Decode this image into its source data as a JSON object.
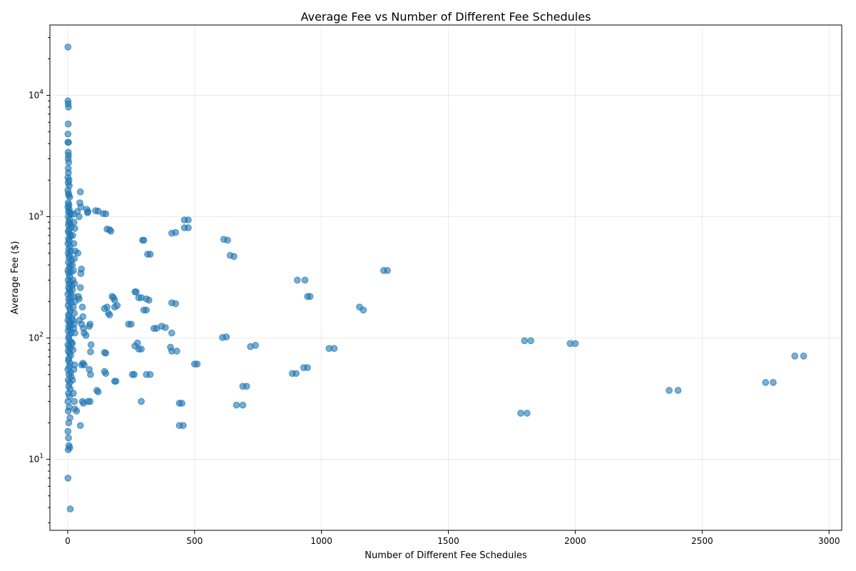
{
  "chart_data": {
    "type": "scatter",
    "title": "Average Fee vs Number of Different Fee Schedules",
    "xlabel": "Number of Different Fee Schedules",
    "ylabel": "Average Fee ($)",
    "xlim": [
      -70,
      3050
    ],
    "ylim": [
      2.6,
      38000
    ],
    "yscale": "log",
    "grid": true,
    "color": "#1f77b4",
    "x_ticks": [
      0,
      500,
      1000,
      1500,
      2000,
      2500,
      3000
    ],
    "x_tick_labels": [
      "0",
      "500",
      "1000",
      "1500",
      "2000",
      "2500",
      "3000"
    ],
    "y_ticks": [
      10,
      100,
      1000,
      10000
    ],
    "y_tick_labels": [
      [
        "10",
        "1"
      ],
      [
        "10",
        "2"
      ],
      [
        "10",
        "3"
      ],
      [
        "10",
        "4"
      ]
    ],
    "points": [
      [
        1,
        25000
      ],
      [
        1,
        9000
      ],
      [
        2,
        8500
      ],
      [
        3,
        8000
      ],
      [
        2,
        5800
      ],
      [
        1,
        4800
      ],
      [
        1,
        4100
      ],
      [
        3,
        4100
      ],
      [
        2,
        3400
      ],
      [
        3,
        3200
      ],
      [
        2,
        3000
      ],
      [
        4,
        2800
      ],
      [
        2,
        2500
      ],
      [
        3,
        2300
      ],
      [
        1,
        2100
      ],
      [
        5,
        2000
      ],
      [
        2,
        1900
      ],
      [
        6,
        1800
      ],
      [
        1,
        1650
      ],
      [
        3,
        1550
      ],
      [
        4,
        1500
      ],
      [
        8,
        1450
      ],
      [
        2,
        1300
      ],
      [
        5,
        1250
      ],
      [
        1,
        1200
      ],
      [
        6,
        1150
      ],
      [
        3,
        1100
      ],
      [
        9,
        1080
      ],
      [
        12,
        1050
      ],
      [
        2,
        1000
      ],
      [
        7,
        950
      ],
      [
        4,
        900
      ],
      [
        10,
        880
      ],
      [
        3,
        850
      ],
      [
        14,
        820
      ],
      [
        5,
        780
      ],
      [
        2,
        750
      ],
      [
        8,
        720
      ],
      [
        11,
        690
      ],
      [
        3,
        660
      ],
      [
        6,
        630
      ],
      [
        1,
        600
      ],
      [
        9,
        570
      ],
      [
        4,
        540
      ],
      [
        12,
        520
      ],
      [
        2,
        500
      ],
      [
        7,
        480
      ],
      [
        5,
        460
      ],
      [
        15,
        440
      ],
      [
        3,
        420
      ],
      [
        10,
        400
      ],
      [
        6,
        380
      ],
      [
        1,
        360
      ],
      [
        13,
        350
      ],
      [
        4,
        340
      ],
      [
        8,
        320
      ],
      [
        2,
        300
      ],
      [
        11,
        290
      ],
      [
        5,
        280
      ],
      [
        16,
        270
      ],
      [
        3,
        260
      ],
      [
        7,
        250
      ],
      [
        9,
        240
      ],
      [
        1,
        230
      ],
      [
        12,
        220
      ],
      [
        4,
        210
      ],
      [
        6,
        200
      ],
      [
        14,
        195
      ],
      [
        2,
        185
      ],
      [
        8,
        175
      ],
      [
        10,
        165
      ],
      [
        3,
        155
      ],
      [
        5,
        150
      ],
      [
        17,
        145
      ],
      [
        1,
        140
      ],
      [
        7,
        135
      ],
      [
        11,
        130
      ],
      [
        4,
        125
      ],
      [
        9,
        120
      ],
      [
        2,
        115
      ],
      [
        13,
        110
      ],
      [
        6,
        105
      ],
      [
        3,
        100
      ],
      [
        8,
        95
      ],
      [
        15,
        92
      ],
      [
        1,
        88
      ],
      [
        5,
        85
      ],
      [
        10,
        82
      ],
      [
        2,
        78
      ],
      [
        7,
        75
      ],
      [
        12,
        72
      ],
      [
        4,
        68
      ],
      [
        3,
        65
      ],
      [
        9,
        62
      ],
      [
        6,
        58
      ],
      [
        1,
        55
      ],
      [
        11,
        52
      ],
      [
        5,
        50
      ],
      [
        14,
        48
      ],
      [
        2,
        45
      ],
      [
        8,
        43
      ],
      [
        4,
        40
      ],
      [
        10,
        38
      ],
      [
        3,
        35
      ],
      [
        7,
        33
      ],
      [
        1,
        30
      ],
      [
        6,
        27
      ],
      [
        2,
        25
      ],
      [
        9,
        22
      ],
      [
        4,
        20
      ],
      [
        1,
        17
      ],
      [
        3,
        15
      ],
      [
        5,
        13
      ],
      [
        2,
        12
      ],
      [
        8,
        12.5
      ],
      [
        1,
        7
      ],
      [
        10,
        3.9
      ],
      [
        22,
        1050
      ],
      [
        25,
        900
      ],
      [
        28,
        800
      ],
      [
        20,
        700
      ],
      [
        24,
        600
      ],
      [
        30,
        520
      ],
      [
        26,
        450
      ],
      [
        18,
        400
      ],
      [
        23,
        360
      ],
      [
        21,
        300
      ],
      [
        27,
        280
      ],
      [
        19,
        250
      ],
      [
        24,
        220
      ],
      [
        29,
        200
      ],
      [
        22,
        180
      ],
      [
        26,
        160
      ],
      [
        20,
        140
      ],
      [
        25,
        130
      ],
      [
        23,
        120
      ],
      [
        28,
        110
      ],
      [
        18,
        90
      ],
      [
        21,
        80
      ],
      [
        27,
        60
      ],
      [
        24,
        55
      ],
      [
        19,
        45
      ],
      [
        22,
        35
      ],
      [
        26,
        30
      ],
      [
        28,
        26
      ],
      [
        35,
        25
      ],
      [
        40,
        500
      ],
      [
        38,
        1100
      ],
      [
        45,
        1000
      ],
      [
        50,
        1600
      ],
      [
        48,
        1300
      ],
      [
        52,
        1200
      ],
      [
        42,
        220
      ],
      [
        45,
        210
      ],
      [
        50,
        260
      ],
      [
        54,
        370
      ],
      [
        52,
        340
      ],
      [
        46,
        140
      ],
      [
        55,
        130
      ],
      [
        60,
        150
      ],
      [
        58,
        180
      ],
      [
        62,
        120
      ],
      [
        65,
        110
      ],
      [
        55,
        60
      ],
      [
        60,
        62
      ],
      [
        65,
        60
      ],
      [
        58,
        30
      ],
      [
        62,
        29
      ],
      [
        50,
        19
      ],
      [
        75,
        1150
      ],
      [
        78,
        1080
      ],
      [
        80,
        1100
      ],
      [
        72,
        105
      ],
      [
        85,
        125
      ],
      [
        88,
        130
      ],
      [
        90,
        77
      ],
      [
        92,
        88
      ],
      [
        85,
        55
      ],
      [
        90,
        50
      ],
      [
        80,
        30
      ],
      [
        88,
        30
      ],
      [
        110,
        1120
      ],
      [
        120,
        1110
      ],
      [
        115,
        37
      ],
      [
        120,
        36
      ],
      [
        140,
        1060
      ],
      [
        150,
        1055
      ],
      [
        155,
        790
      ],
      [
        165,
        780
      ],
      [
        170,
        760
      ],
      [
        145,
        175
      ],
      [
        155,
        180
      ],
      [
        160,
        160
      ],
      [
        165,
        155
      ],
      [
        145,
        76
      ],
      [
        150,
        75
      ],
      [
        145,
        53
      ],
      [
        150,
        51
      ],
      [
        175,
        220
      ],
      [
        180,
        215
      ],
      [
        185,
        205
      ],
      [
        185,
        180
      ],
      [
        195,
        185
      ],
      [
        185,
        44
      ],
      [
        190,
        44
      ],
      [
        240,
        130
      ],
      [
        250,
        130
      ],
      [
        255,
        50
      ],
      [
        262,
        50
      ],
      [
        265,
        240
      ],
      [
        270,
        240
      ],
      [
        265,
        86
      ],
      [
        275,
        91
      ],
      [
        280,
        81
      ],
      [
        290,
        81
      ],
      [
        280,
        215
      ],
      [
        290,
        215
      ],
      [
        295,
        640
      ],
      [
        300,
        640
      ],
      [
        290,
        30
      ],
      [
        300,
        170
      ],
      [
        310,
        210
      ],
      [
        320,
        205
      ],
      [
        310,
        170
      ],
      [
        315,
        490
      ],
      [
        325,
        490
      ],
      [
        310,
        50
      ],
      [
        325,
        50
      ],
      [
        340,
        120
      ],
      [
        350,
        120
      ],
      [
        370,
        125
      ],
      [
        385,
        122
      ],
      [
        405,
        84
      ],
      [
        410,
        78
      ],
      [
        410,
        110
      ],
      [
        410,
        195
      ],
      [
        425,
        192
      ],
      [
        410,
        730
      ],
      [
        425,
        740
      ],
      [
        430,
        78
      ],
      [
        440,
        19
      ],
      [
        455,
        19
      ],
      [
        440,
        29
      ],
      [
        450,
        29
      ],
      [
        460,
        940
      ],
      [
        475,
        940
      ],
      [
        460,
        810
      ],
      [
        475,
        810
      ],
      [
        500,
        61
      ],
      [
        510,
        61
      ],
      [
        610,
        101
      ],
      [
        625,
        102
      ],
      [
        615,
        650
      ],
      [
        630,
        640
      ],
      [
        640,
        480
      ],
      [
        655,
        470
      ],
      [
        665,
        28
      ],
      [
        690,
        28
      ],
      [
        690,
        40
      ],
      [
        705,
        40
      ],
      [
        720,
        85
      ],
      [
        740,
        87
      ],
      [
        885,
        51
      ],
      [
        900,
        51
      ],
      [
        905,
        300
      ],
      [
        935,
        300
      ],
      [
        930,
        57
      ],
      [
        945,
        57
      ],
      [
        945,
        220
      ],
      [
        955,
        220
      ],
      [
        1030,
        82
      ],
      [
        1050,
        82
      ],
      [
        1150,
        180
      ],
      [
        1165,
        170
      ],
      [
        1245,
        360
      ],
      [
        1260,
        360
      ],
      [
        1785,
        24
      ],
      [
        1810,
        24
      ],
      [
        1800,
        95
      ],
      [
        1825,
        95
      ],
      [
        1980,
        90
      ],
      [
        2000,
        90
      ],
      [
        2370,
        37
      ],
      [
        2405,
        37
      ],
      [
        2750,
        43
      ],
      [
        2780,
        43
      ],
      [
        2865,
        71
      ],
      [
        2900,
        71
      ]
    ]
  }
}
